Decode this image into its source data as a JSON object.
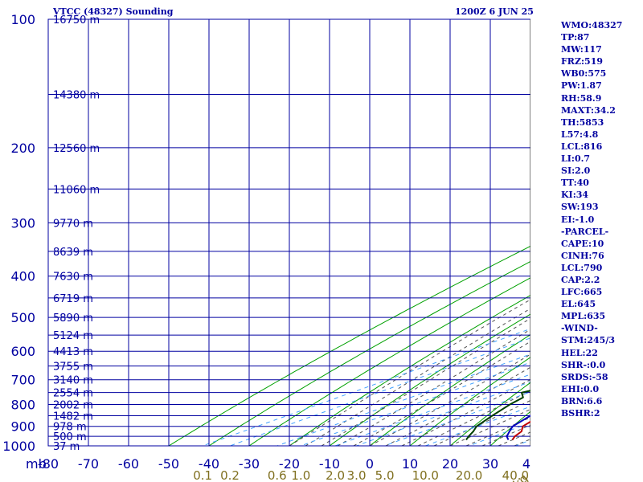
{
  "header": {
    "station": "VTCC (48327) Sounding",
    "time": "1200Z  6 JUN 25"
  },
  "axis": {
    "pressure_unit_label": "mb"
  },
  "indices": [
    "WMO:48327",
    "TP:87",
    "MW:117",
    "FRZ:519",
    "WB0:575",
    "PW:1.87",
    "RH:58.9",
    "MAXT:34.2",
    "TH:5853",
    "L57:4.8",
    "LCL:816",
    "LI:0.7",
    "SI:2.0",
    "TT:40",
    "KI:34",
    "SW:193",
    "EI:-1.0",
    "-PARCEL-",
    "CAPE:10",
    "CINH:76",
    "LCL:790",
    "CAP:2.2",
    "LFC:665",
    "EL:645",
    "MPL:635",
    "-WIND-",
    "STM:245/3",
    "HEL:22",
    "SHR-:0.0",
    "SRDS:-58",
    "EHI:0.0",
    "BRN:6.6",
    "BSHR:2"
  ],
  "colors": {
    "grid": "#0000a0",
    "dry_adiabat": "#00a000",
    "moist_adiabat": "#505050",
    "mixing_ratio": "#40a0ff",
    "temperature": "#c00000",
    "dewpoint": "#004000",
    "parcel": "#0000c0",
    "mixing_label": "#807020"
  },
  "chart_data": {
    "type": "line",
    "title": "VTCC (48327) Sounding",
    "xlabel": "",
    "ylabel": "mb",
    "pressure_log_scale": true,
    "temperature_xlim": [
      -80,
      40
    ],
    "pressure_ylim": [
      1000,
      100
    ],
    "pressure_ticks": [
      100,
      200,
      300,
      400,
      500,
      600,
      700,
      800,
      900,
      1000
    ],
    "temperature_ticks": [
      -80,
      -70,
      -60,
      -50,
      -40,
      -30,
      -20,
      -10,
      0,
      10,
      20,
      30,
      40
    ],
    "temperature_tick_labels": [
      "-80",
      "-70",
      "-60",
      "-50",
      "-40",
      "-30",
      "-20",
      "-10",
      "0",
      "10",
      "20",
      "30",
      "40"
    ],
    "mixing_ratio_labels": [
      "0.1",
      "0.2",
      "0.6",
      "1.0",
      "2.0",
      "3.0",
      "5.0",
      "10.0",
      "20.0",
      "40.0"
    ],
    "mixing_ratio_unit": "g/kg",
    "height_labels": [
      {
        "p": 100,
        "label": "16750 m"
      },
      {
        "p": 150,
        "label": "14380 m"
      },
      {
        "p": 200,
        "label": "12560 m"
      },
      {
        "p": 250,
        "label": "11060 m"
      },
      {
        "p": 300,
        "label": "9770 m"
      },
      {
        "p": 350,
        "label": "8639 m"
      },
      {
        "p": 400,
        "label": "7630 m"
      },
      {
        "p": 450,
        "label": "6719 m"
      },
      {
        "p": 500,
        "label": "5890 m"
      },
      {
        "p": 550,
        "label": "5124 m"
      },
      {
        "p": 600,
        "label": "4413 m"
      },
      {
        "p": 650,
        "label": "3755 m"
      },
      {
        "p": 700,
        "label": "3140 m"
      },
      {
        "p": 750,
        "label": "2554 m"
      },
      {
        "p": 800,
        "label": "2002 m"
      },
      {
        "p": 850,
        "label": "1482 m"
      },
      {
        "p": 900,
        "label": "978 m"
      },
      {
        "p": 950,
        "label": "500 m"
      },
      {
        "p": 1000,
        "label": "37 m"
      }
    ],
    "grid": true,
    "series": [
      {
        "key": "temperature",
        "points": [
          [
            968,
            31
          ],
          [
            950,
            29
          ],
          [
            925,
            27
          ],
          [
            900,
            23.5
          ],
          [
            850,
            20
          ],
          [
            800,
            16
          ],
          [
            750,
            12
          ],
          [
            700,
            9
          ],
          [
            650,
            5
          ],
          [
            600,
            1
          ],
          [
            550,
            -3
          ],
          [
            500,
            -7
          ],
          [
            450,
            -11
          ],
          [
            400,
            -16
          ],
          [
            350,
            -22
          ],
          [
            300,
            -29
          ],
          [
            250,
            -37
          ],
          [
            200,
            -47
          ],
          [
            170,
            -55
          ],
          [
            150,
            -62
          ],
          [
            130,
            -70
          ],
          [
            115,
            -76
          ],
          [
            100,
            -80
          ]
        ]
      },
      {
        "key": "dewpoint",
        "points": [
          [
            968,
            19.5
          ],
          [
            950,
            17.5
          ],
          [
            925,
            15
          ],
          [
            900,
            12
          ],
          [
            850,
            8
          ],
          [
            800,
            4
          ],
          [
            770,
            2
          ],
          [
            750,
            -2
          ],
          [
            740,
            -1
          ],
          [
            720,
            0
          ],
          [
            700,
            -2
          ],
          [
            670,
            -4
          ],
          [
            650,
            -6
          ],
          [
            600,
            -12
          ],
          [
            560,
            -13
          ],
          [
            545,
            -18
          ],
          [
            510,
            -19
          ],
          [
            500,
            -19
          ],
          [
            480,
            -20
          ],
          [
            460,
            -21
          ],
          [
            440,
            -24
          ],
          [
            420,
            -24
          ],
          [
            410,
            -24
          ],
          [
            400,
            -28
          ],
          [
            380,
            -34
          ],
          [
            360,
            -40
          ],
          [
            350,
            -41
          ],
          [
            345,
            -32
          ],
          [
            340,
            -35
          ],
          [
            320,
            -42
          ],
          [
            305,
            -45
          ],
          [
            295,
            -46
          ],
          [
            280,
            -45
          ],
          [
            260,
            -46
          ],
          [
            240,
            -52
          ],
          [
            220,
            -57
          ],
          [
            200,
            -63
          ],
          [
            180,
            -71
          ],
          [
            160,
            -79
          ],
          [
            150,
            -84
          ],
          [
            140,
            -88
          ]
        ]
      },
      {
        "key": "parcel",
        "points": [
          [
            968,
            30
          ],
          [
            950,
            27
          ],
          [
            925,
            24
          ],
          [
            900,
            21
          ],
          [
            850,
            17.5
          ],
          [
            800,
            14.5
          ],
          [
            750,
            12
          ],
          [
            700,
            9
          ],
          [
            650,
            5.5
          ],
          [
            600,
            1.5
          ],
          [
            550,
            -2.5
          ],
          [
            500,
            -7
          ],
          [
            450,
            -11.5
          ],
          [
            400,
            -16.5
          ],
          [
            350,
            -23
          ],
          [
            300,
            -31
          ],
          [
            250,
            -40
          ],
          [
            200,
            -50
          ],
          [
            150,
            -65
          ],
          [
            130,
            -74
          ],
          [
            115,
            -82
          ],
          [
            105,
            -87
          ]
        ]
      }
    ]
  }
}
